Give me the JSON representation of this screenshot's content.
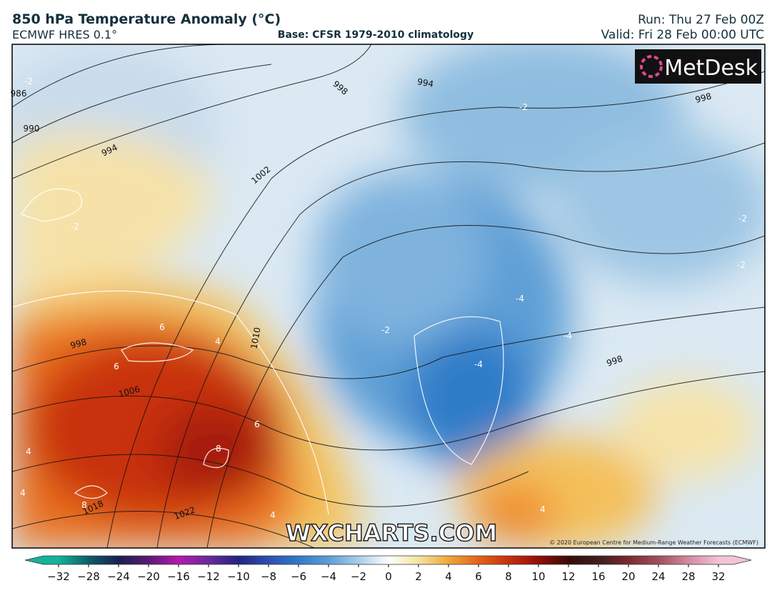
{
  "header": {
    "title": "850 hPa Temperature Anomaly (°C)",
    "model": "ECMWF HRES 0.1°",
    "base": "Base: CFSR 1979-2010 climatology",
    "run": "Run: Thu 27 Feb 00Z",
    "valid": "Valid: Fri 28 Feb 00:00 UTC"
  },
  "map": {
    "logo": "MetDesk",
    "watermark": "WXCHARTS.COM",
    "copyright": "© 2020 European Centre for Medium-Range Weather Forecasts (ECMWF)",
    "isobar_labels": [
      "986",
      "990",
      "994",
      "1002",
      "998",
      "994",
      "998",
      "998",
      "1006",
      "1010",
      "1018",
      "1022",
      "998"
    ],
    "anomaly_labels": [
      "-2",
      "-2",
      "-2",
      "-4",
      "-4",
      "-2",
      "6",
      "6",
      "4",
      "8",
      "8",
      "6",
      "4",
      "4",
      "4",
      "4",
      "-4",
      "-2",
      "-2"
    ]
  },
  "colorbar": {
    "ticks": [
      "−32",
      "−28",
      "−24",
      "−20",
      "−16",
      "−12",
      "−10",
      "−8",
      "−6",
      "−4",
      "−2",
      "0",
      "2",
      "4",
      "6",
      "8",
      "10",
      "12",
      "16",
      "20",
      "24",
      "28",
      "32"
    ]
  }
}
